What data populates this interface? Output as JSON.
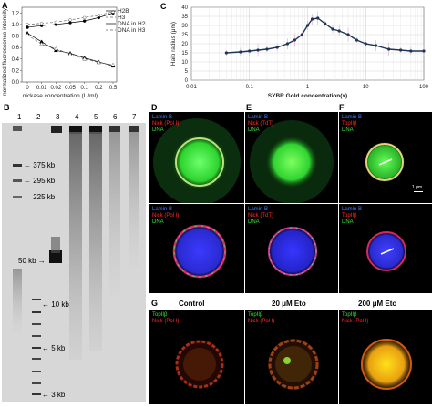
{
  "panels": {
    "A": "A",
    "B": "B",
    "C": "C",
    "D": "D",
    "E": "E",
    "F": "F",
    "G": "G"
  },
  "chart_data": [
    {
      "type": "scatter",
      "panel": "A",
      "ylabel": "normalized fluorescence intensity",
      "xlabel": "nickase concentration (U/ml)",
      "x_ticks": [
        "0",
        "0.01",
        "0.02",
        "0.05",
        "0.1",
        "0.2",
        "0.5"
      ],
      "y_ticks": [
        "0.0",
        "0.2",
        "0.4",
        "0.6",
        "0.8",
        "1.0",
        "1.2"
      ],
      "ylim": [
        0.0,
        1.3
      ],
      "legend": [
        "H2B",
        "H3",
        "DNA in H2B nuclei",
        "DNA in H3 nuclei"
      ],
      "legend_position": "top-right",
      "series": [
        {
          "name": "H2B",
          "marker": "filled-circle",
          "x": [
            "0",
            "0.01",
            "0.02",
            "0.05",
            "0.1",
            "0.2",
            "0.5"
          ],
          "values": [
            0.95,
            0.98,
            1.0,
            1.03,
            1.06,
            1.12,
            1.2
          ]
        },
        {
          "name": "H3",
          "marker": "open-circle",
          "x": [
            "0",
            "0.01",
            "0.02",
            "0.05",
            "0.1",
            "0.2",
            "0.5"
          ],
          "values": [
            1.0,
            1.02,
            1.04,
            1.08,
            1.12,
            1.16,
            1.22
          ]
        },
        {
          "name": "DNA in H2B nuclei",
          "marker": "filled-triangle",
          "x": [
            "0",
            "0.01",
            "0.02",
            "0.05",
            "0.1",
            "0.2",
            "0.5"
          ],
          "values": [
            0.85,
            0.7,
            0.55,
            0.5,
            0.42,
            0.35,
            0.28
          ]
        },
        {
          "name": "DNA in H3 nuclei",
          "marker": "open-triangle",
          "x": [
            "0",
            "0.01",
            "0.02",
            "0.05",
            "0.1",
            "0.2",
            "0.5"
          ],
          "values": [
            0.82,
            0.66,
            0.58,
            0.48,
            0.4,
            0.34,
            0.3
          ]
        }
      ]
    },
    {
      "type": "line",
      "panel": "C",
      "ylabel": "Halo radius (μm)",
      "xlabel": "SYBR Gold concentration(x)",
      "x_scale": "log",
      "x_ticks": [
        "0.01",
        "0.1",
        "1",
        "10",
        "100"
      ],
      "y_ticks": [
        "0",
        "5",
        "10",
        "15",
        "20",
        "25",
        "30",
        "35",
        "40"
      ],
      "ylim": [
        0,
        40
      ],
      "grid": true,
      "series": [
        {
          "x": [
            0.04,
            0.07,
            0.1,
            0.14,
            0.2,
            0.3,
            0.45,
            0.6,
            0.8,
            1.0,
            1.2,
            1.5,
            2.0,
            2.7,
            3.5,
            5,
            7,
            10,
            15,
            25,
            40,
            60,
            100
          ],
          "values": [
            15,
            15.5,
            16,
            16.5,
            17,
            18,
            20,
            22,
            25,
            30,
            33.5,
            34,
            31,
            28,
            27,
            25,
            22,
            20,
            19,
            17,
            16.5,
            16,
            16
          ]
        }
      ]
    }
  ],
  "gel": {
    "lanes": [
      "1",
      "2",
      "3",
      "4",
      "5",
      "6",
      "7"
    ],
    "markers_upper": [
      "375 kb",
      "295 kb",
      "225 kb"
    ],
    "marker_50": "50 kb",
    "markers_lower": [
      "10 kb",
      "5 kb",
      "3 kb"
    ]
  },
  "micro": {
    "D_top": {
      "line1": "Lamin B",
      "line2": "Nick (Pol I)",
      "line3": "DNA"
    },
    "E_top": {
      "line1": "Lamin B",
      "line2": "Nick (TdT)",
      "line3": "DNA"
    },
    "F_top": {
      "line1": "Lamin B",
      "line2": "TopIIβ",
      "line3": "DNA"
    },
    "D_bot": {
      "line1": "Lamin B",
      "line2": "Nick (Pol I)",
      "line3": "DNA"
    },
    "E_bot": {
      "line1": "Lamin B",
      "line2": "Nick (TdT)",
      "line3": "DNA"
    },
    "F_bot": {
      "line1": "Lamin B",
      "line2": "TopIIβ",
      "line3": "DNA"
    },
    "scale": "1 μm",
    "G": {
      "conditions": [
        "Control",
        "20 μM Eto",
        "200 μM Eto"
      ],
      "line1": "TopIIβ",
      "line2": "Nick (Pol I)"
    }
  }
}
